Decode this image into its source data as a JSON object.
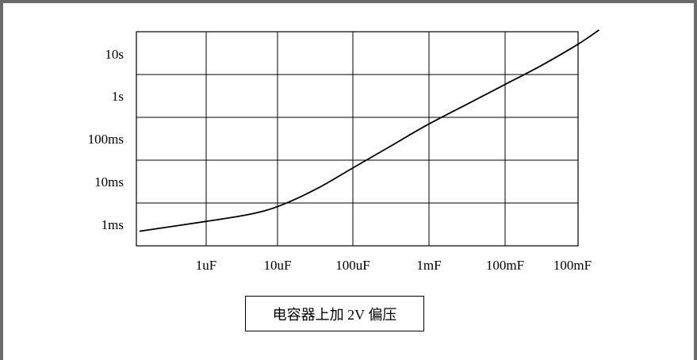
{
  "chart_data": {
    "type": "line",
    "title": "",
    "xlabel": "",
    "ylabel": "",
    "grid": true,
    "x_scale": "log",
    "y_scale": "log",
    "x_tick_labels": [
      "1uF",
      "10uF",
      "100uF",
      "1mF",
      "100mF",
      "100mF"
    ],
    "y_tick_labels": [
      "1ms",
      "10ms",
      "100ms",
      "1s",
      "10s"
    ],
    "series": [
      {
        "name": "",
        "points": [
          {
            "x_decade": -0.9,
            "y_decade": -0.4
          },
          {
            "x_decade": 0.0,
            "y_decade": -0.17
          },
          {
            "x_decade": 0.6,
            "y_decade": 0.0
          },
          {
            "x_decade": 1.0,
            "y_decade": 0.2
          },
          {
            "x_decade": 1.5,
            "y_decade": 0.6
          },
          {
            "x_decade": 2.0,
            "y_decade": 1.1
          },
          {
            "x_decade": 2.5,
            "y_decade": 1.6
          },
          {
            "x_decade": 3.0,
            "y_decade": 2.1
          },
          {
            "x_decade": 3.5,
            "y_decade": 2.55
          },
          {
            "x_decade": 4.0,
            "y_decade": 3.0
          },
          {
            "x_decade": 4.5,
            "y_decade": 3.45
          },
          {
            "x_decade": 5.0,
            "y_decade": 3.95
          },
          {
            "x_decade": 5.3,
            "y_decade": 4.3
          }
        ]
      }
    ]
  },
  "caption": "电容器上加 2V 偏压"
}
